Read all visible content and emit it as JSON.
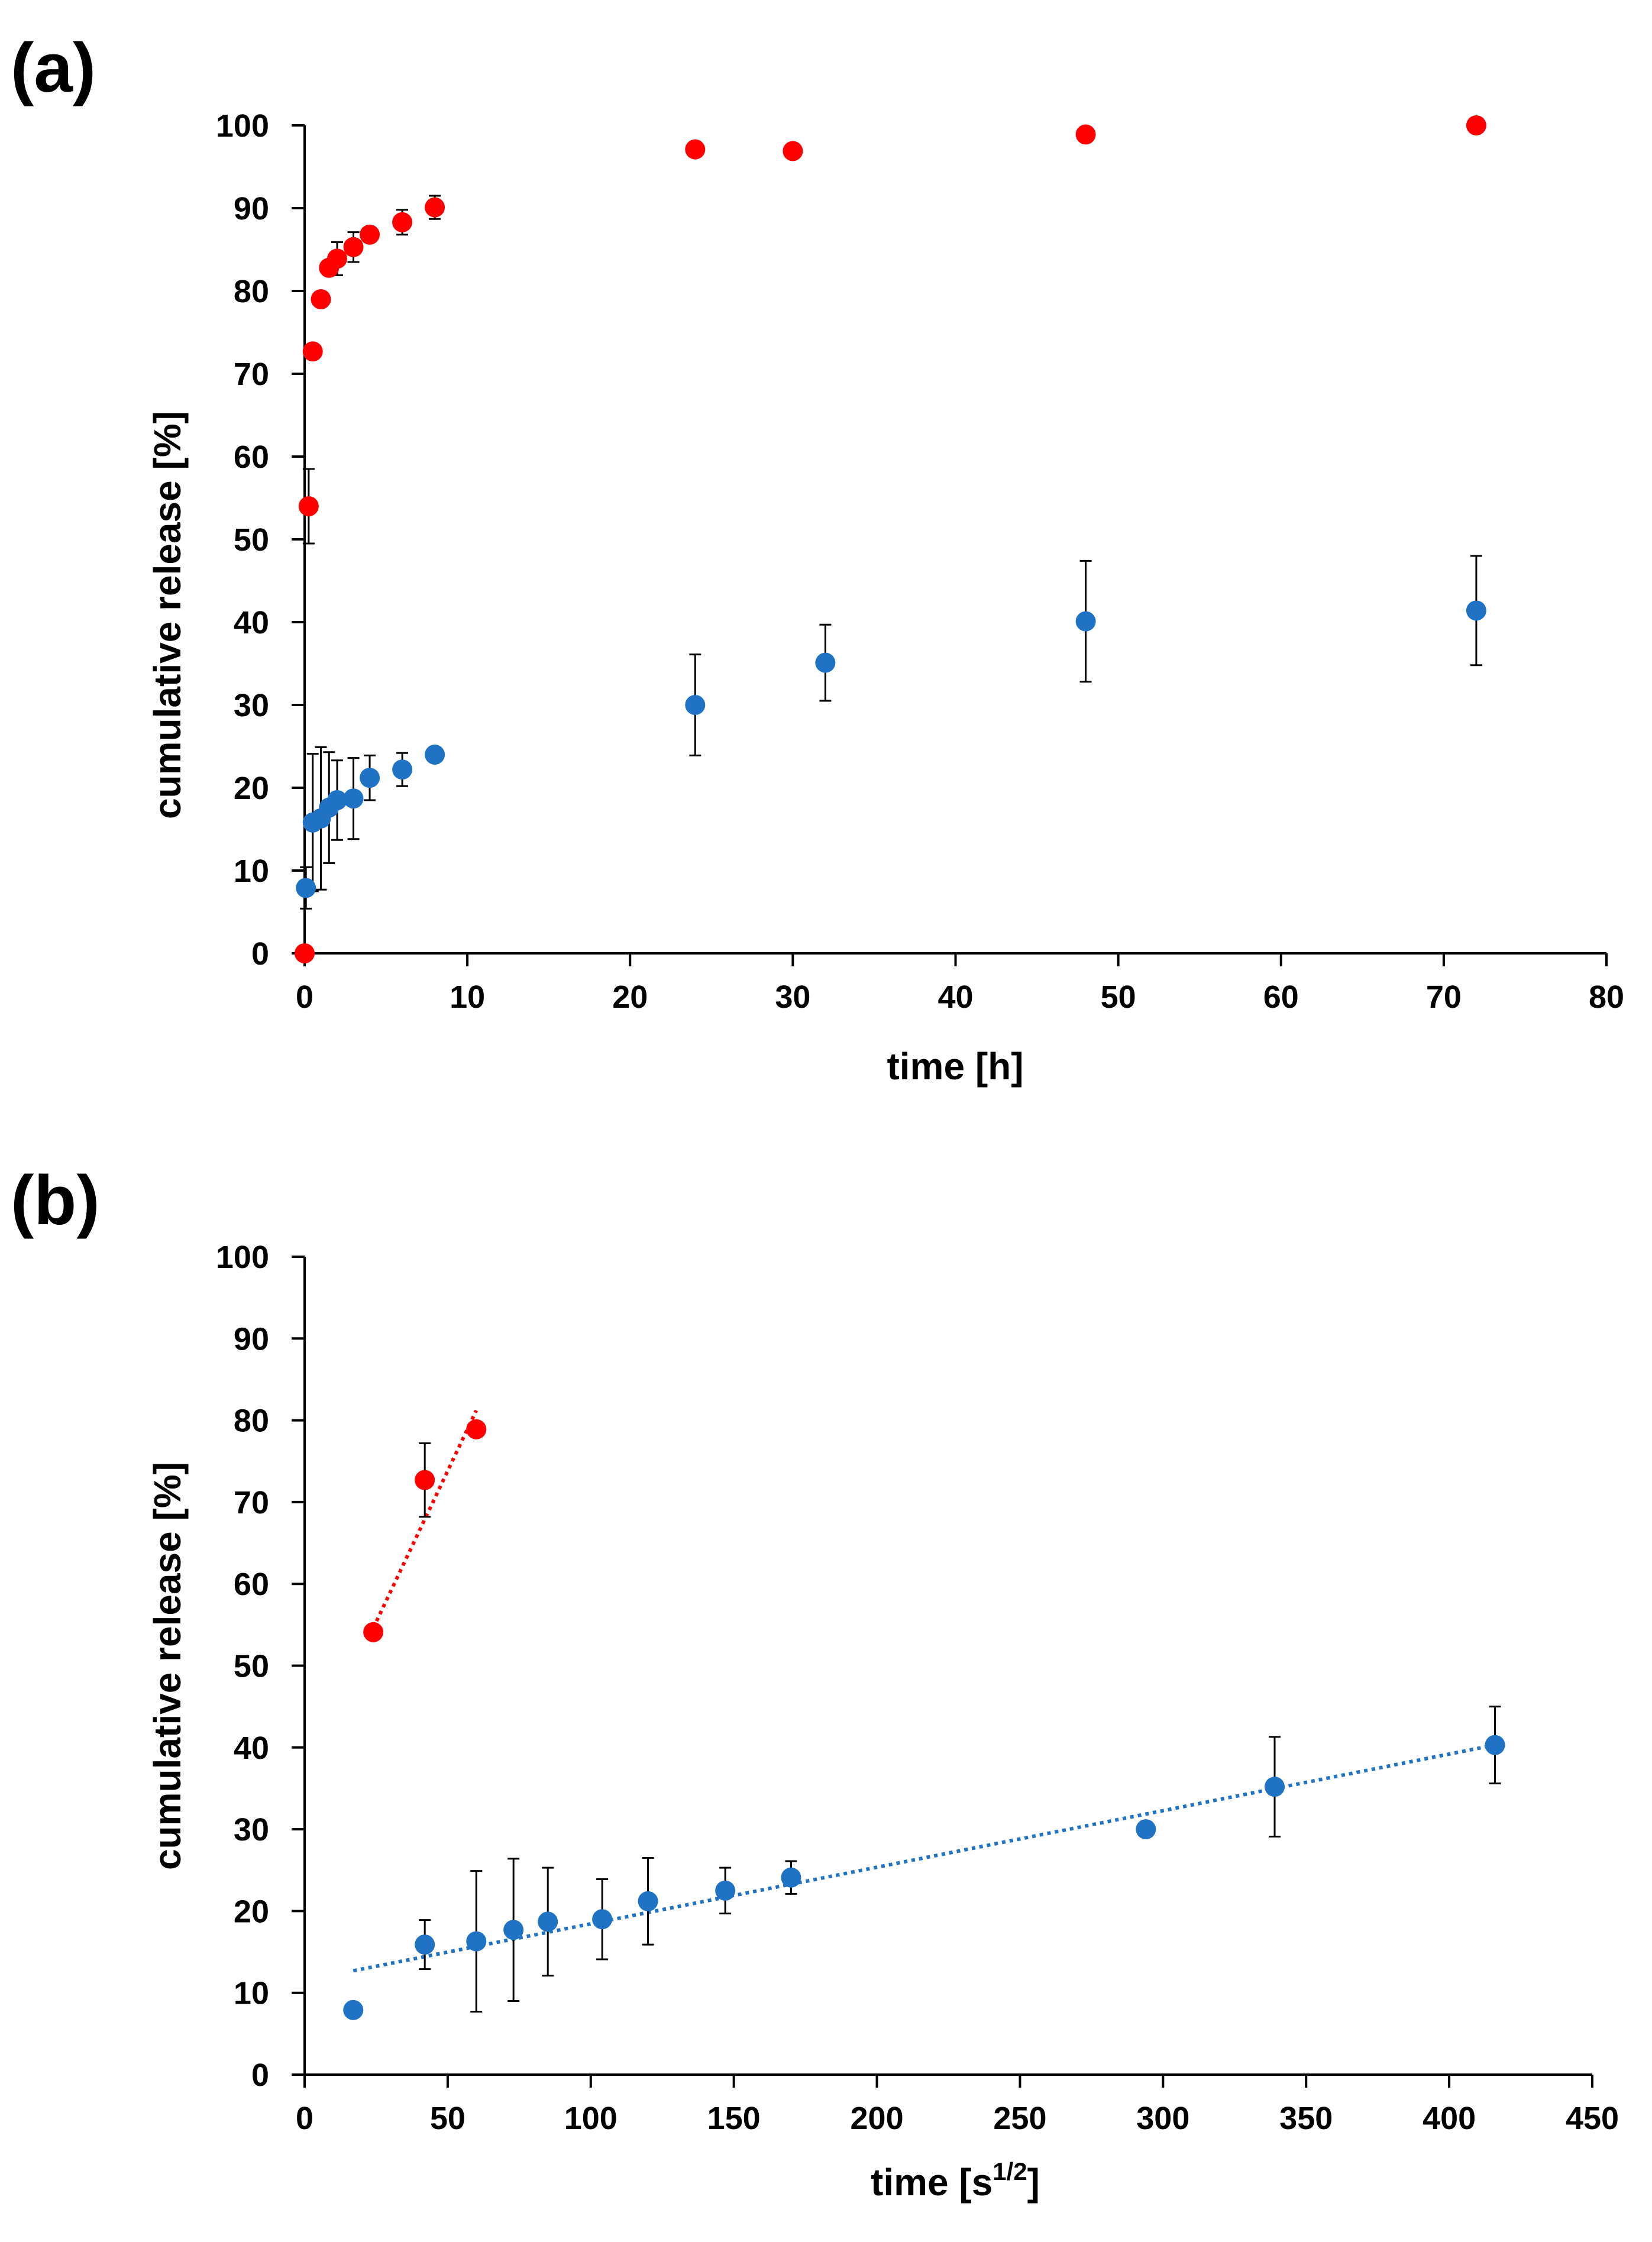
{
  "figure": {
    "panels": [
      "(a)",
      "(b)"
    ]
  },
  "colors": {
    "series_red": "#ff0000",
    "series_blue": "#1f72c4",
    "errorbar": "#000000",
    "axis": "#000000"
  },
  "chart_data": [
    {
      "type": "scatter",
      "panel_label": "(a)",
      "title": "",
      "xlabel": "time [h]",
      "ylabel": "cumulative release [%]",
      "xlim": [
        0,
        80
      ],
      "ylim": [
        0,
        100
      ],
      "xticks": [
        0,
        10,
        20,
        30,
        40,
        50,
        60,
        70,
        80
      ],
      "yticks": [
        0,
        10,
        20,
        30,
        40,
        50,
        60,
        70,
        80,
        90,
        100
      ],
      "grid": false,
      "legend": "none",
      "series": [
        {
          "name": "red series",
          "color": "#ff0000",
          "points": [
            {
              "x": 0,
              "y": 0,
              "err": 0
            },
            {
              "x": 0.25,
              "y": 54,
              "err": 4.5
            },
            {
              "x": 0.5,
              "y": 72.7,
              "err": 0
            },
            {
              "x": 1,
              "y": 79,
              "err": 0
            },
            {
              "x": 1.5,
              "y": 82.8,
              "err": 0
            },
            {
              "x": 2,
              "y": 83.9,
              "err": 2
            },
            {
              "x": 3,
              "y": 85.3,
              "err": 1.8
            },
            {
              "x": 4,
              "y": 86.8,
              "err": 0
            },
            {
              "x": 6,
              "y": 88.3,
              "err": 1.5
            },
            {
              "x": 8,
              "y": 90.1,
              "err": 1.4
            },
            {
              "x": 24,
              "y": 97.1,
              "err": 0
            },
            {
              "x": 30,
              "y": 96.9,
              "err": 0
            },
            {
              "x": 48,
              "y": 98.9,
              "err": 0
            },
            {
              "x": 72,
              "y": 100,
              "err": 0
            }
          ]
        },
        {
          "name": "blue series",
          "color": "#1f72c4",
          "points": [
            {
              "x": 0.08,
              "y": 7.9,
              "err": 2.5
            },
            {
              "x": 0.5,
              "y": 15.8,
              "err": 8.3
            },
            {
              "x": 1,
              "y": 16.3,
              "err": 8.6
            },
            {
              "x": 1.5,
              "y": 17.6,
              "err": 6.7
            },
            {
              "x": 2,
              "y": 18.5,
              "err": 4.8
            },
            {
              "x": 3,
              "y": 18.7,
              "err": 4.9
            },
            {
              "x": 4,
              "y": 21.2,
              "err": 2.7
            },
            {
              "x": 6,
              "y": 22.2,
              "err": 2
            },
            {
              "x": 8,
              "y": 24,
              "err": 0
            },
            {
              "x": 24,
              "y": 30,
              "err": 6.1
            },
            {
              "x": 32,
              "y": 35.1,
              "err": 4.6
            },
            {
              "x": 48,
              "y": 40.1,
              "err": 7.3
            },
            {
              "x": 72,
              "y": 41.4,
              "err": 6.6
            }
          ]
        }
      ]
    },
    {
      "type": "scatter",
      "panel_label": "(b)",
      "title": "",
      "xlabel": "time [s",
      "xlabel_superscript": "1/2",
      "xlabel_suffix": "]",
      "ylabel": "cumulative release [%]",
      "xlim": [
        0,
        450
      ],
      "ylim": [
        0,
        100
      ],
      "xticks": [
        0,
        50,
        100,
        150,
        200,
        250,
        300,
        350,
        400,
        450
      ],
      "yticks": [
        0,
        10,
        20,
        30,
        40,
        50,
        60,
        70,
        80,
        90,
        100
      ],
      "grid": false,
      "legend": "none",
      "series": [
        {
          "name": "red series",
          "color": "#ff0000",
          "points": [
            {
              "x": 24,
              "y": 54.1,
              "err": 0
            },
            {
              "x": 42,
              "y": 72.7,
              "err": 4.5
            },
            {
              "x": 60,
              "y": 78.9,
              "err": 0
            }
          ],
          "trendline": {
            "x": [
              24,
              60
            ],
            "y": [
              54.6,
              81.2
            ]
          }
        },
        {
          "name": "blue series",
          "color": "#1f72c4",
          "points": [
            {
              "x": 17,
              "y": 7.9,
              "err": 0
            },
            {
              "x": 42,
              "y": 15.9,
              "err": 3
            },
            {
              "x": 60,
              "y": 16.3,
              "err": 8.6
            },
            {
              "x": 73,
              "y": 17.7,
              "err": 8.7
            },
            {
              "x": 85,
              "y": 18.7,
              "err": 6.6
            },
            {
              "x": 104,
              "y": 19,
              "err": 4.9
            },
            {
              "x": 120,
              "y": 21.2,
              "err": 5.3
            },
            {
              "x": 147,
              "y": 22.5,
              "err": 2.8
            },
            {
              "x": 170,
              "y": 24.1,
              "err": 2
            },
            {
              "x": 294,
              "y": 30,
              "err": 0
            },
            {
              "x": 339,
              "y": 35.2,
              "err": 6.1
            },
            {
              "x": 416,
              "y": 40.3,
              "err": 4.7
            }
          ],
          "trendline": {
            "x": [
              17,
              416
            ],
            "y": [
              12.7,
              40.3
            ]
          }
        }
      ]
    }
  ]
}
